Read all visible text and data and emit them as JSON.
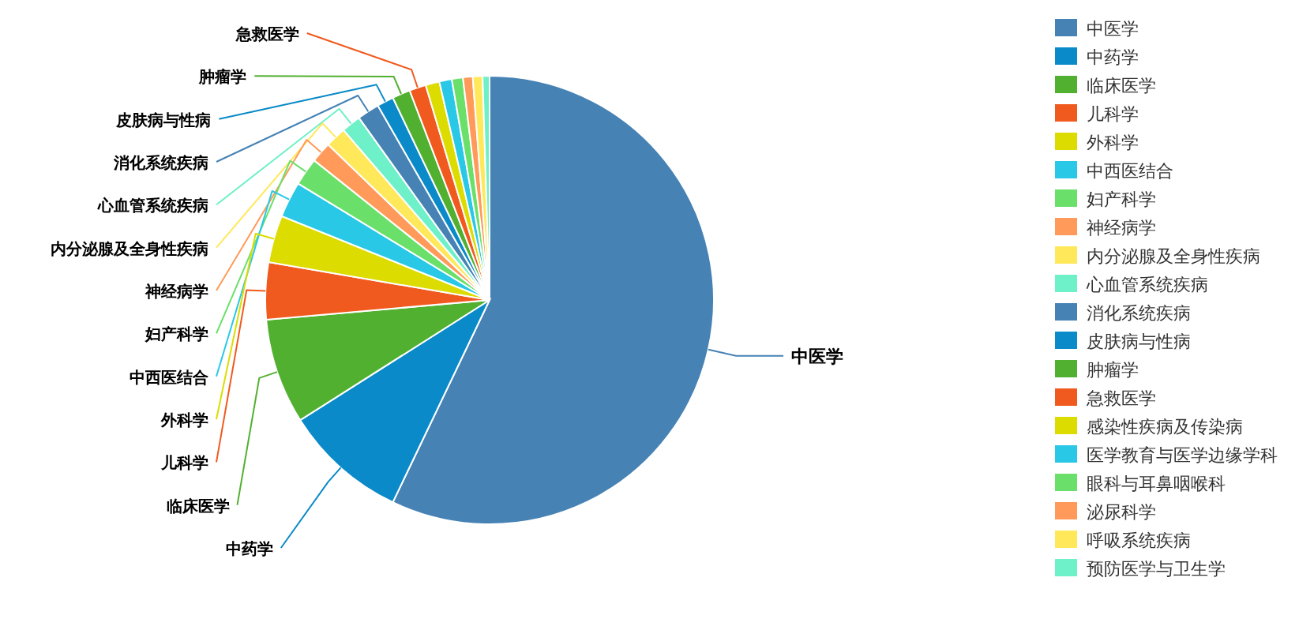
{
  "chart_data": {
    "type": "pie",
    "categories": [
      "中医学",
      "中药学",
      "临床医学",
      "儿科学",
      "外科学",
      "中西医结合",
      "妇产科学",
      "神经病学",
      "内分泌腺及全身性疾病",
      "心血管系统疾病",
      "消化系统疾病",
      "皮肤病与性病",
      "肿瘤学",
      "急救医学",
      "感染性疾病及传染病",
      "医学教育与医学边缘学科",
      "眼科与耳鼻咽喉科",
      "泌尿科学",
      "呼吸系统疾病",
      "预防医学与卫生学"
    ],
    "values": [
      57.1,
      8.9,
      7.6,
      4.1,
      3.4,
      2.6,
      2.0,
      1.5,
      1.5,
      1.4,
      1.6,
      1.2,
      1.3,
      1.2,
      1.0,
      0.9,
      0.8,
      0.7,
      0.7,
      0.5
    ],
    "colors": [
      "#4682b4",
      "#0a8ac8",
      "#52b031",
      "#f05a1e",
      "#dcdc00",
      "#28c8e6",
      "#6ae06a",
      "#ff9a5a",
      "#ffe85a",
      "#6ef0c8",
      "#4682b4",
      "#0a8ac8",
      "#52b031",
      "#f05a1e",
      "#dcdc00",
      "#28c8e6",
      "#6ae06a",
      "#ff9a5a",
      "#ffe85a",
      "#6ef0c8"
    ],
    "annotations": [
      {
        "text": "中医学",
        "x": "中医学"
      },
      {
        "text": "中药学",
        "x": "中药学"
      },
      {
        "text": "临床医学",
        "x": "临床医学"
      },
      {
        "text": "儿科学",
        "x": "儿科学"
      },
      {
        "text": "外科学",
        "x": "外科学"
      },
      {
        "text": "中西医结合",
        "x": "中西医结合"
      },
      {
        "text": "妇产科学",
        "x": "妇产科学"
      },
      {
        "text": "神经病学",
        "x": "神经病学"
      },
      {
        "text": "内分泌腺及全身性疾病",
        "x": "内分泌腺及全身性疾病"
      },
      {
        "text": "心血管系统疾病",
        "x": "心血管系统疾病"
      },
      {
        "text": "消化系统疾病",
        "x": "消化系统疾病"
      },
      {
        "text": "皮肤病与性病",
        "x": "皮肤病与性病"
      },
      {
        "text": "肿瘤学",
        "x": "肿瘤学"
      },
      {
        "text": "急救医学",
        "x": "急救医学"
      }
    ],
    "legend": "right"
  }
}
